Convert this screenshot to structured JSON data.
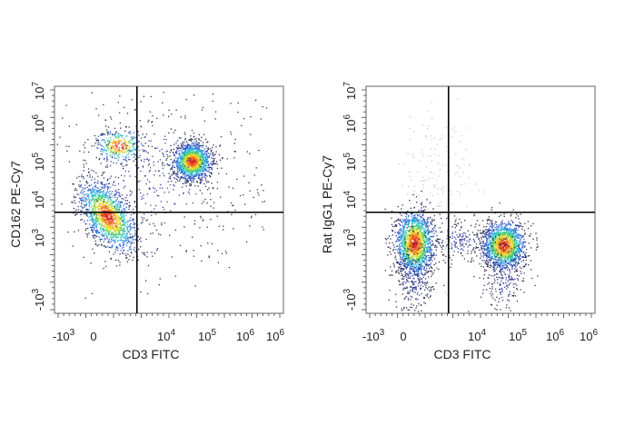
{
  "chart_data": [
    {
      "type": "scatter",
      "subtype": "flow-cytometry-density-dot-plot",
      "title": "",
      "xlabel": "CD3 FITC",
      "ylabel": "CD162 PE-Cy7",
      "x_ticks": [
        {
          "label": "-10",
          "exp": "3"
        },
        {
          "label": "0",
          "exp": ""
        },
        {
          "label": "10",
          "exp": "4"
        },
        {
          "label": "10",
          "exp": "5"
        },
        {
          "label": "10",
          "exp": "6"
        },
        {
          "label": "10",
          "exp": "6"
        }
      ],
      "y_ticks": [
        {
          "label": "-10",
          "exp": "3"
        },
        {
          "label": "10",
          "exp": "3"
        },
        {
          "label": "10",
          "exp": "4"
        },
        {
          "label": "10",
          "exp": "5"
        },
        {
          "label": "10",
          "exp": "6"
        },
        {
          "label": "10",
          "exp": "7"
        }
      ],
      "quadrant_gate": {
        "x": 0.36,
        "y": 0.445
      },
      "populations": [
        {
          "name": "CD3- CD162 low",
          "cx": 0.23,
          "cy": 0.43,
          "sx": 0.045,
          "sy": 0.085,
          "rot": 0.6,
          "n": 1500
        },
        {
          "name": "CD3- CD162 mid",
          "cx": 0.28,
          "cy": 0.74,
          "sx": 0.05,
          "sy": 0.035,
          "rot": 0.0,
          "n": 350
        },
        {
          "name": "CD3+ CD162 high",
          "cx": 0.6,
          "cy": 0.67,
          "sx": 0.04,
          "sy": 0.038,
          "rot": 0.2,
          "n": 1500
        },
        {
          "name": "scatter",
          "cx": 0.45,
          "cy": 0.6,
          "sx": 0.14,
          "sy": 0.12,
          "rot": 0.0,
          "n": 600,
          "sparse": true
        }
      ]
    },
    {
      "type": "scatter",
      "subtype": "flow-cytometry-density-dot-plot",
      "title": "",
      "xlabel": "CD3 FITC",
      "ylabel": "Rat IgG1 PE-Cy7",
      "x_ticks": [
        {
          "label": "-10",
          "exp": "3"
        },
        {
          "label": "0",
          "exp": ""
        },
        {
          "label": "10",
          "exp": "4"
        },
        {
          "label": "10",
          "exp": "5"
        },
        {
          "label": "10",
          "exp": "6"
        },
        {
          "label": "10",
          "exp": "6"
        }
      ],
      "y_ticks": [
        {
          "label": "-10",
          "exp": "3"
        },
        {
          "label": "10",
          "exp": "3"
        },
        {
          "label": "10",
          "exp": "4"
        },
        {
          "label": "10",
          "exp": "5"
        },
        {
          "label": "10",
          "exp": "6"
        },
        {
          "label": "10",
          "exp": "7"
        }
      ],
      "quadrant_gate": {
        "x": 0.36,
        "y": 0.445
      },
      "populations": [
        {
          "name": "CD3- isotype",
          "cx": 0.21,
          "cy": 0.31,
          "sx": 0.04,
          "sy": 0.07,
          "rot": 0.0,
          "n": 1700
        },
        {
          "name": "CD3+ isotype",
          "cx": 0.6,
          "cy": 0.3,
          "sx": 0.045,
          "sy": 0.05,
          "rot": 0.0,
          "n": 1600
        },
        {
          "name": "CD3- tail",
          "cx": 0.21,
          "cy": 0.15,
          "sx": 0.03,
          "sy": 0.07,
          "rot": 0.0,
          "n": 300,
          "sparse": true
        },
        {
          "name": "CD3+ tail",
          "cx": 0.6,
          "cy": 0.16,
          "sx": 0.03,
          "sy": 0.06,
          "rot": 0.0,
          "n": 250,
          "sparse": true
        },
        {
          "name": "faint upper",
          "cx": 0.3,
          "cy": 0.55,
          "sx": 0.05,
          "sy": 0.12,
          "rot": 0.0,
          "n": 180,
          "sparse": true,
          "faint": true
        },
        {
          "name": "bridge",
          "cx": 0.41,
          "cy": 0.32,
          "sx": 0.05,
          "sy": 0.03,
          "rot": 0.0,
          "n": 220,
          "sparse": true
        }
      ]
    }
  ]
}
